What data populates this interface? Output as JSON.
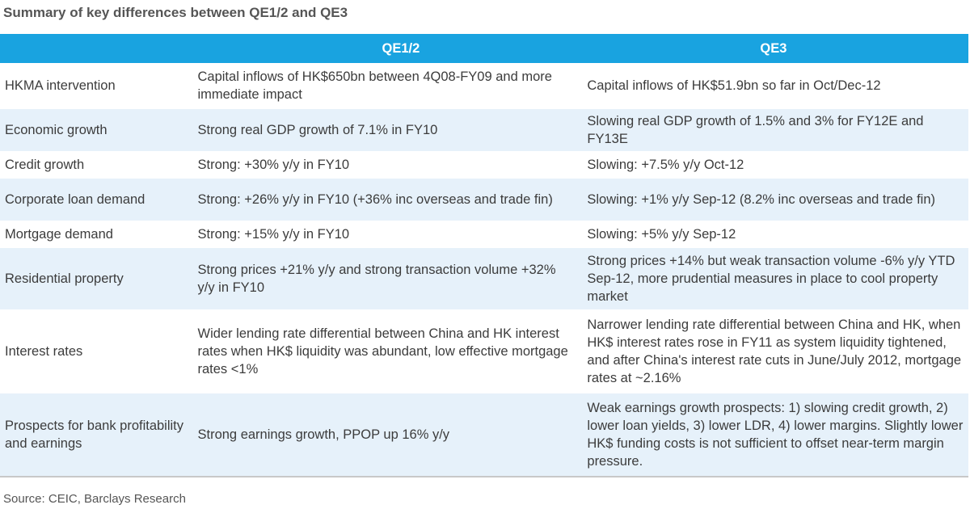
{
  "title": "Summary of key differences between QE1/2 and QE3",
  "columns": [
    "",
    "QE1/2",
    "QE3"
  ],
  "rows": [
    {
      "label": "HKMA intervention",
      "qe12": "Capital inflows of HK$650bn between 4Q08-FY09 and more immediate impact",
      "qe3": "Capital inflows of HK$51.9bn so far in Oct/Dec-12"
    },
    {
      "label": "Economic growth",
      "qe12": "Strong real GDP growth of 7.1% in FY10",
      "qe3": "Slowing real GDP growth of 1.5% and 3% for FY12E and FY13E"
    },
    {
      "label": "Credit growth",
      "qe12": "Strong: +30% y/y in FY10",
      "qe3": "Slowing: +7.5% y/y Oct-12"
    },
    {
      "label": "Corporate loan demand",
      "qe12": "Strong: +26% y/y in FY10 (+36% inc overseas and trade fin)",
      "qe3": "Slowing: +1% y/y Sep-12 (8.2% inc overseas and trade fin)"
    },
    {
      "label": "Mortgage demand",
      "qe12": "Strong: +15% y/y in FY10",
      "qe3": "Slowing: +5% y/y Sep-12"
    },
    {
      "label": "Residential property",
      "qe12": "Strong prices +21% y/y and strong transaction volume +32% y/y in FY10",
      "qe3": "Strong prices +14% but weak transaction volume -6% y/y YTD Sep-12, more prudential measures in place to cool property market"
    },
    {
      "label": "Interest rates",
      "qe12": "Wider lending rate differential between China and HK interest rates when HK$ liquidity was abundant, low effective mortgage rates <1%",
      "qe3": "Narrower lending rate differential between China and HK, when HK$ interest rates rose in FY11 as system liquidity tightened, and after China's interest rate cuts in June/July 2012, mortgage rates at ~2.16%"
    },
    {
      "label": "Prospects for bank profitability and earnings",
      "qe12": "Strong earnings growth, PPOP up 16% y/y",
      "qe3": "Weak earnings growth prospects: 1) slowing credit growth, 2) lower loan yields, 3) lower LDR, 4) lower margins. Slightly lower HK$ funding costs is not sufficient to offset near-term margin pressure."
    }
  ],
  "source": "Source: CEIC, Barclays Research",
  "colors": {
    "header_bg": "#19a3e0",
    "alt_row_bg": "#e6f1fa"
  }
}
